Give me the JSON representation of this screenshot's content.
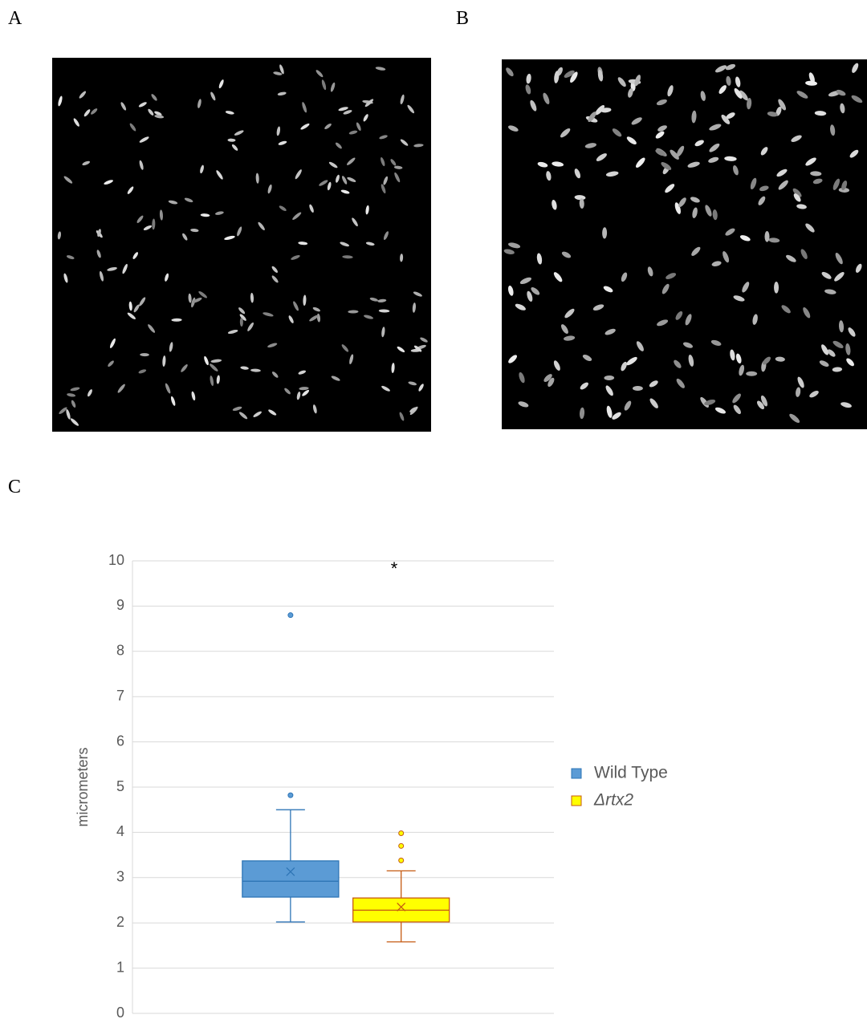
{
  "panels": {
    "a": "A",
    "b": "B",
    "c": "C"
  },
  "chart_data": {
    "type": "box",
    "y_label": "micrometers",
    "annotation": "*",
    "ylim": [
      0,
      10
    ],
    "yticks": [
      0,
      1,
      2,
      3,
      4,
      5,
      6,
      7,
      8,
      9,
      10
    ],
    "grid": true,
    "legend": "right",
    "series": [
      {
        "name": "Wild Type",
        "color": "#5b9bd5",
        "stroke": "#2e75b6",
        "min": 2.02,
        "q1": 2.57,
        "median": 2.92,
        "q3": 3.37,
        "max": 4.5,
        "mean": 3.13,
        "outliers": [
          4.82,
          8.8
        ]
      },
      {
        "name": "Δrtx2",
        "color": "#ffff00",
        "stroke": "#c55a11",
        "min": 1.58,
        "q1": 2.02,
        "median": 2.28,
        "q3": 2.55,
        "max": 3.15,
        "mean": 2.35,
        "outliers": [
          3.38,
          3.7,
          3.98
        ]
      }
    ]
  }
}
